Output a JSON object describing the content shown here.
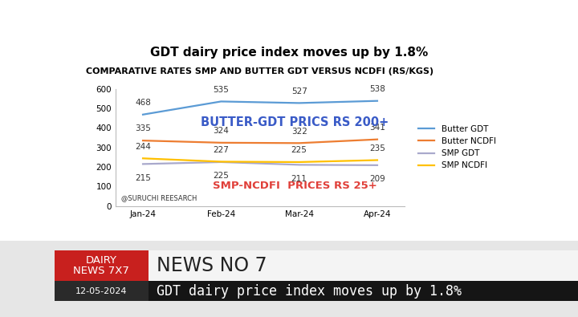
{
  "chart_data": {
    "type": "line",
    "title": "GDT dairy price index moves up by 1.8%",
    "subtitle": "COMPARATIVE RATES SMP AND BUTTER GDT VERSUS NCDFI (RS/KGS)",
    "categories": [
      "Jan-24",
      "Feb-24",
      "Mar-24",
      "Apr-24"
    ],
    "series": [
      {
        "name": "Butter GDT",
        "color": "#5b9bd5",
        "values": [
          468,
          535,
          527,
          538
        ]
      },
      {
        "name": "Butter NCDFI",
        "color": "#ed7d31",
        "values": [
          335,
          324,
          322,
          341
        ]
      },
      {
        "name": "SMP GDT",
        "color": "#a9a9cc",
        "values": [
          215,
          225,
          211,
          209
        ]
      },
      {
        "name": "SMP NCDFI",
        "color": "#ffc000",
        "values": [
          244,
          227,
          225,
          235
        ]
      }
    ],
    "ylim": [
      0,
      600
    ],
    "yticks": [
      0,
      100,
      200,
      300,
      400,
      500,
      600
    ],
    "grid": false,
    "legend": "right",
    "data_labels": true,
    "annotations": [
      {
        "text": "BUTTER-GDT PRICS RS 200+",
        "color": "#3a5bc7"
      },
      {
        "text": "SMP-NCDFI  PRICES RS 25+",
        "color": "#e0403a"
      },
      {
        "text": "@SURUCHI REESARCH",
        "color": "#333333"
      }
    ]
  },
  "banner": {
    "logo": "DAIRY\nNEWS 7X7",
    "headline": "NEWS NO 7",
    "date": "12-05-2024",
    "ticker": "GDT dairy price index moves up by 1.8%"
  }
}
